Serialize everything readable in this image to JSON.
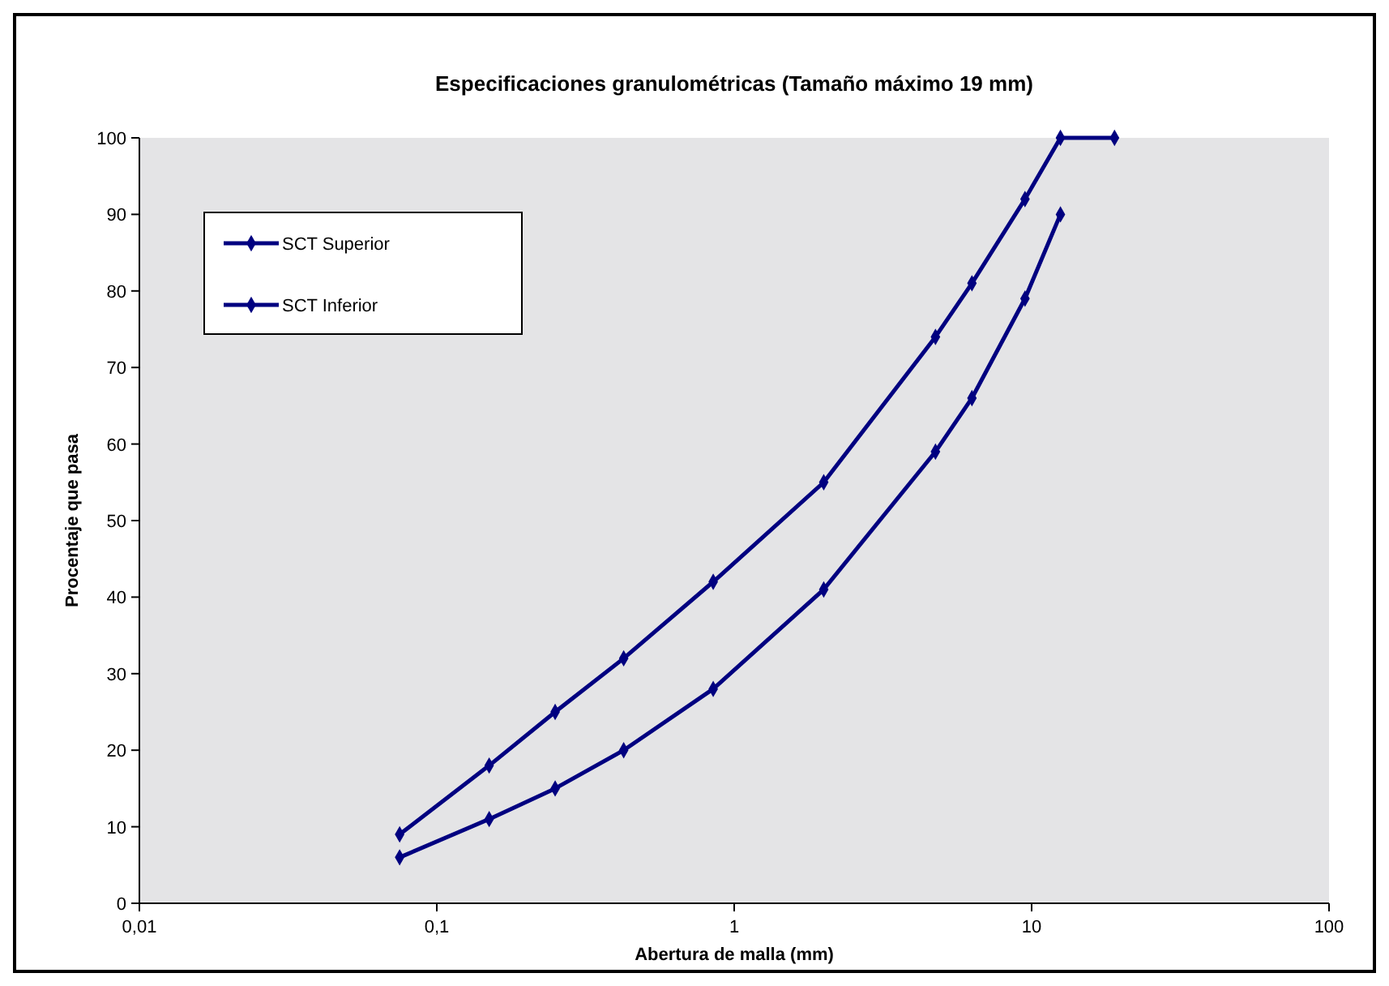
{
  "chart_data": {
    "type": "line",
    "title": "Especificaciones granulométricas (Tamaño máximo 19 mm)",
    "xlabel": "Abertura de malla (mm)",
    "ylabel": "Procentaje que pasa",
    "log": "x",
    "xlim": [
      0.01,
      100
    ],
    "xticks": [
      {
        "value": 0.01,
        "label": "0,01"
      },
      {
        "value": 0.1,
        "label": "0,1"
      },
      1,
      10,
      100
    ],
    "ylim": [
      0,
      100
    ],
    "yticks": [
      0,
      10,
      20,
      30,
      40,
      50,
      60,
      70,
      80,
      90,
      100
    ],
    "grid": false,
    "legend": "top left",
    "marker": "diamond",
    "line_style": "solid",
    "series": [
      {
        "name": "SCT Superior",
        "color": "#000080",
        "x": [
          0.075,
          0.15,
          0.25,
          0.425,
          0.85,
          2,
          4.75,
          6.3,
          9.5,
          12.5,
          19
        ],
        "values": [
          9,
          18,
          25,
          32,
          42,
          55,
          74,
          81,
          92,
          100,
          100
        ]
      },
      {
        "name": "SCT Inferior",
        "color": "#000080",
        "x": [
          0.075,
          0.15,
          0.25,
          0.425,
          0.85,
          2,
          4.75,
          6.3,
          9.5,
          12.5
        ],
        "values": [
          6,
          11,
          15,
          20,
          28,
          41,
          59,
          66,
          79,
          90
        ]
      }
    ]
  }
}
